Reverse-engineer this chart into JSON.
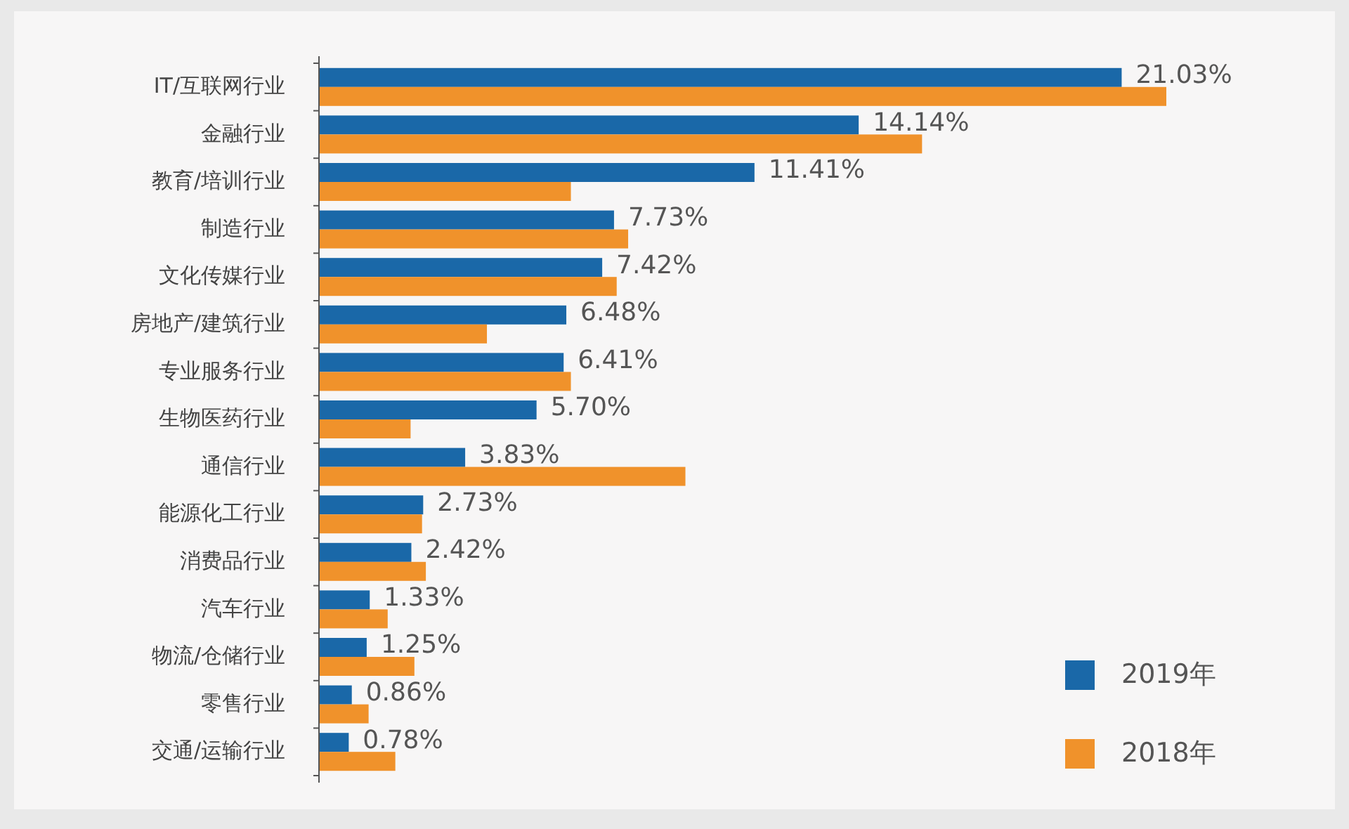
{
  "chart_data": {
    "type": "bar",
    "orientation": "horizontal",
    "legend": "bottom right",
    "categories": [
      "IT/互联网行业",
      "金融行业",
      "教育/培训行业",
      "制造行业",
      "文化传媒行业",
      "房地产/建筑行业",
      "专业服务行业",
      "生物医药行业",
      "通信行业",
      "能源化工行业",
      "消费品行业",
      "汽车行业",
      "物流/仓储行业",
      "零售行业",
      "交通/运输行业"
    ],
    "series": [
      {
        "name": "2019年",
        "color": "#1a68a8",
        "values": [
          21.03,
          14.14,
          11.41,
          7.73,
          7.42,
          6.48,
          6.41,
          5.7,
          3.83,
          2.73,
          2.42,
          1.33,
          1.25,
          0.86,
          0.78
        ],
        "value_labels": [
          "21.03%",
          "14.14%",
          "11.41%",
          "7.73%",
          "7.42%",
          "6.48%",
          "6.41%",
          "5.70%",
          "3.83%",
          "2.73%",
          "2.42%",
          "1.33%",
          "1.25%",
          "0.86%",
          "0.78%"
        ]
      },
      {
        "name": "2018年",
        "color": "#f0922b",
        "values": [
          22.2,
          15.8,
          6.6,
          8.1,
          7.8,
          4.4,
          6.6,
          2.4,
          9.6,
          2.7,
          2.8,
          1.8,
          2.5,
          1.3,
          2.0
        ]
      }
    ]
  }
}
